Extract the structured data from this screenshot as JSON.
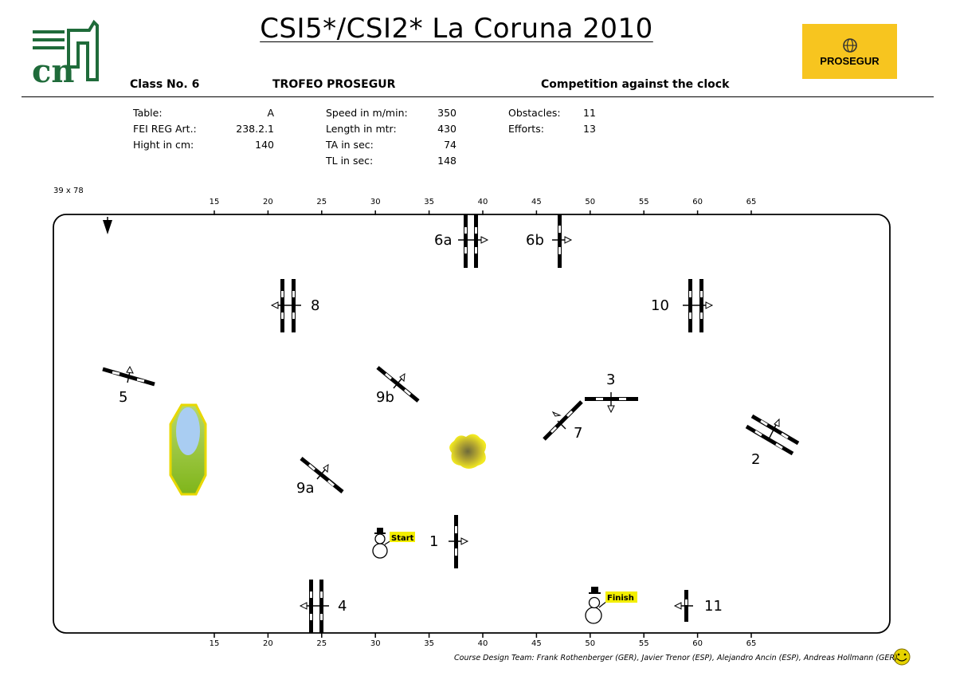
{
  "title": "CSI5*/CSI2* La Coruna 2010",
  "org_logo_text": "cn",
  "sponsor": {
    "name": "PROSEGUR",
    "color": "#f7c51f"
  },
  "class_info": {
    "class_no": "Class No.  6",
    "trophy": "TROFEO PROSEGUR",
    "competition": "Competition against the clock"
  },
  "specs": {
    "col1": [
      {
        "label": "Table:",
        "value": "A"
      },
      {
        "label": "FEI REG Art.:",
        "value": "238.2.1"
      },
      {
        "label": "Hight in cm:",
        "value": "140"
      }
    ],
    "col2": [
      {
        "label": "Speed in m/min:",
        "value": "350"
      },
      {
        "label": "Length in mtr:",
        "value": "430"
      },
      {
        "label": "TA in sec:",
        "value": "74"
      },
      {
        "label": "TL in sec:",
        "value": "148"
      }
    ],
    "col3": [
      {
        "label": "Obstacles:",
        "value": "11"
      },
      {
        "label": "Efforts:",
        "value": "13"
      }
    ]
  },
  "arena": {
    "size": "39 x 78"
  },
  "scale_ticks": [
    "15",
    "20",
    "25",
    "30",
    "35",
    "40",
    "45",
    "50",
    "55",
    "60",
    "65"
  ],
  "obstacles": [
    "1",
    "2",
    "3",
    "4",
    "5",
    "6a",
    "6b",
    "7",
    "8",
    "9a",
    "9b",
    "10",
    "11"
  ],
  "start_label": "Start",
  "finish_label": "Finish",
  "credits": "Course Design Team:   Frank Rothenberger (GER), Javier Trenor (ESP), Alejandro Ancin (ESP), Andreas Hollmann (GER)",
  "colors": {
    "accent": "#f7c51f",
    "logo_green": "#1f6b3a",
    "lake_blue": "#a9cdf2",
    "lake_green": "#8ec21a"
  }
}
